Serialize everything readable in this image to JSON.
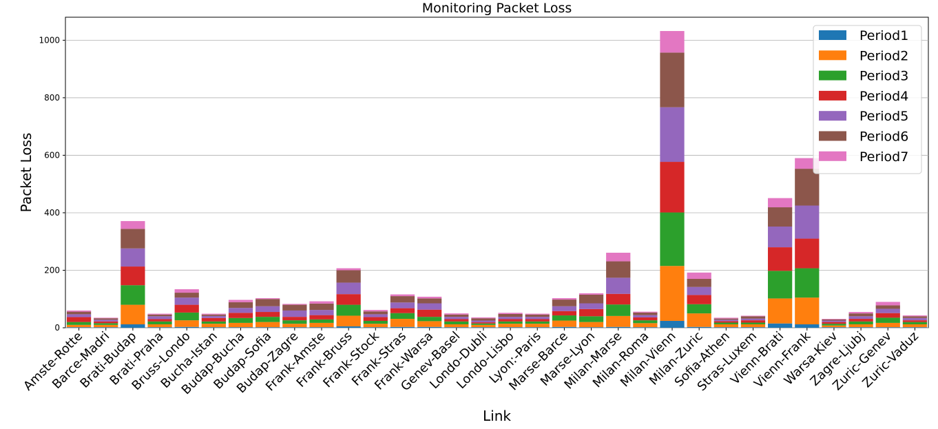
{
  "chart_data": {
    "type": "bar",
    "stacked": true,
    "title": "Monitoring Packet Loss",
    "xlabel": "Link",
    "ylabel": "Packet Loss",
    "ylim": [
      0,
      1080
    ],
    "yticks": [
      0,
      200,
      400,
      600,
      800,
      1000
    ],
    "grid": "horizontal",
    "legend_position": "top-right",
    "categories": [
      "Amste-Rotte",
      "Barce-Madri",
      "Brati-Budap",
      "Brati-Praha",
      "Bruss-Londo",
      "Bucha-Istan",
      "Budap-Bucha",
      "Budap-Sofia",
      "Budap-Zagre",
      "Frank-Amste",
      "Frank-Bruss",
      "Frank-Stock",
      "Frank-Stras",
      "Frank-Warsa",
      "Genev-Basel",
      "Londo-Dubli",
      "Londo-Lisbo",
      "Lyon:-Paris",
      "Marse-Barce",
      "Marse-Lyon",
      "Milan-Marse",
      "Milan-Roma",
      "Milan-Vienn",
      "Milan-Zuric",
      "Sofia-Athen",
      "Stras-Luxem",
      "Vienn-Brati",
      "Vienn-Frank",
      "Warsa-Kiev",
      "Zagre-Ljubj",
      "Zuric-Genev",
      "Zuric-Vaduz"
    ],
    "series": [
      {
        "name": "Period1",
        "color": "#1f77b4",
        "values": [
          2,
          2,
          12,
          2,
          3,
          2,
          2,
          2,
          2,
          2,
          5,
          2,
          3,
          3,
          2,
          2,
          2,
          2,
          3,
          2,
          3,
          2,
          24,
          3,
          2,
          2,
          15,
          12,
          2,
          2,
          2,
          2
        ]
      },
      {
        "name": "Period2",
        "color": "#ff7f0e",
        "values": [
          8,
          8,
          68,
          10,
          23,
          12,
          15,
          18,
          12,
          15,
          37,
          12,
          28,
          20,
          10,
          8,
          12,
          12,
          22,
          18,
          38,
          14,
          191,
          47,
          10,
          10,
          87,
          93,
          6,
          10,
          15,
          10
        ]
      },
      {
        "name": "Period3",
        "color": "#2ca02c",
        "values": [
          10,
          6,
          68,
          10,
          27,
          8,
          17,
          18,
          12,
          12,
          38,
          10,
          20,
          15,
          10,
          5,
          8,
          8,
          18,
          20,
          40,
          10,
          186,
          32,
          6,
          6,
          96,
          102,
          6,
          10,
          18,
          8
        ]
      },
      {
        "name": "Period4",
        "color": "#d62728",
        "values": [
          17,
          6,
          65,
          8,
          27,
          12,
          18,
          17,
          12,
          15,
          37,
          13,
          17,
          25,
          8,
          4,
          8,
          8,
          15,
          25,
          37,
          10,
          176,
          32,
          5,
          8,
          82,
          103,
          6,
          9,
          16,
          6
        ]
      },
      {
        "name": "Period5",
        "color": "#9467bd",
        "values": [
          10,
          6,
          63,
          10,
          25,
          7,
          17,
          20,
          22,
          18,
          40,
          10,
          20,
          22,
          8,
          6,
          8,
          8,
          17,
          20,
          56,
          8,
          190,
          28,
          5,
          6,
          72,
          115,
          5,
          9,
          15,
          8
        ]
      },
      {
        "name": "Period6",
        "color": "#8c564b",
        "values": [
          9,
          5,
          68,
          6,
          17,
          5,
          20,
          25,
          20,
          22,
          43,
          10,
          22,
          17,
          8,
          8,
          10,
          8,
          23,
          30,
          57,
          9,
          190,
          28,
          4,
          8,
          67,
          128,
          4,
          10,
          12,
          6
        ]
      },
      {
        "name": "Period7",
        "color": "#e377c2",
        "values": [
          4,
          2,
          27,
          3,
          12,
          3,
          8,
          3,
          3,
          8,
          7,
          5,
          6,
          6,
          4,
          3,
          4,
          3,
          5,
          5,
          30,
          3,
          75,
          22,
          3,
          2,
          32,
          37,
          2,
          5,
          12,
          3
        ]
      }
    ]
  }
}
